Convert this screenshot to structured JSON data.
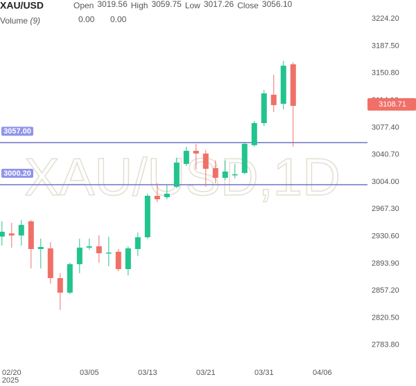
{
  "chart_data": {
    "type": "candlestick",
    "symbol": "XAU/USD",
    "watermark": "XAU/USD,1D",
    "ohlc_legend": [
      {
        "label": "Open",
        "value": "3019.56"
      },
      {
        "label": "High",
        "value": "3059.75"
      },
      {
        "label": "Low",
        "value": "3017.26"
      },
      {
        "label": "Close",
        "value": "3056.10"
      }
    ],
    "volume_label": "Volume",
    "volume_param": "(9)",
    "volume_values": [
      {
        "value": "0.00",
        "color": "#f07068"
      },
      {
        "value": "0.00",
        "color": "#6b8fd6"
      }
    ],
    "up_color": "#22c38e",
    "down_color": "#f07068",
    "x": [
      0,
      1,
      2,
      3,
      4,
      5,
      6,
      7,
      8,
      9,
      10,
      11,
      12,
      13,
      14,
      15,
      16,
      17,
      18,
      19,
      20,
      21,
      22,
      23,
      24,
      25,
      26,
      27,
      28,
      29,
      30
    ],
    "open": [
      2930.2,
      2934.5,
      2931.7,
      2950.8,
      2913.4,
      2914.3,
      2874.2,
      2854.5,
      2893.0,
      2915.3,
      2917.1,
      2907.8,
      2909.7,
      2886.3,
      2913.4,
      2929.3,
      2985.3,
      2983.4,
      2997.5,
      3028.3,
      3046.0,
      3042.3,
      3022.7,
      3009.6,
      3013.0,
      3016.1,
      3053.6,
      3083.4,
      3121.7,
      3109.5,
      3162.8
    ],
    "high": [
      2950.8,
      2948.9,
      2952.6,
      2952.6,
      2927.4,
      2922.7,
      2880.7,
      2894.9,
      2927.4,
      2927.4,
      2932.1,
      2930.0,
      2913.4,
      2917.1,
      2935.8,
      2988.1,
      3002.1,
      2999.3,
      3036.7,
      3051.6,
      3055.4,
      3047.0,
      3033.0,
      3033.0,
      3028.3,
      3058.2,
      3086.2,
      3128.2,
      3148.7,
      3167.4,
      3165.6
    ],
    "low": [
      2918.0,
      2915.3,
      2918.0,
      2887.3,
      2887.3,
      2866.7,
      2831.2,
      2852.6,
      2880.7,
      2912.4,
      2894.9,
      2890.0,
      2883.5,
      2877.9,
      2904.1,
      2927.4,
      2976.9,
      2980.6,
      2995.6,
      3025.5,
      3020.8,
      2997.5,
      3002.1,
      3006.8,
      3008.7,
      3014.3,
      3051.6,
      3079.6,
      3098.3,
      3102.1,
      3051.6
    ],
    "close": [
      2936.8,
      2931.7,
      2946.0,
      2913.4,
      2916.2,
      2874.2,
      2854.5,
      2893.0,
      2915.3,
      2917.1,
      2907.8,
      2908.7,
      2886.3,
      2914.3,
      2929.3,
      2985.3,
      2980.6,
      2988.1,
      3030.1,
      3046.0,
      3042.3,
      3021.7,
      3009.6,
      3018.0,
      3014.3,
      3055.4,
      3083.4,
      3123.5,
      3107.7,
      3160.9,
      3106.7
    ],
    "xlim": [
      -0.2,
      37.3
    ],
    "xticks": [
      {
        "value": 1,
        "label": "02/20"
      },
      {
        "value": 9,
        "label": "03/05"
      },
      {
        "value": 15,
        "label": "03/13"
      },
      {
        "value": 21,
        "label": "03/21"
      },
      {
        "value": 27,
        "label": "03/31"
      },
      {
        "value": 33,
        "label": "04/06"
      }
    ],
    "x_year": "2025",
    "ylim": [
      2754.65,
      3249.6
    ],
    "yticks": [
      {
        "value": 3224.2,
        "label": "3224.20"
      },
      {
        "value": 3187.5,
        "label": "3187.50"
      },
      {
        "value": 3150.8,
        "label": "3150.80"
      },
      {
        "value": 3114.1,
        "label": "3114.10"
      },
      {
        "value": 3077.4,
        "label": "3077.40"
      },
      {
        "value": 3040.7,
        "label": "3040.70"
      },
      {
        "value": 3004,
        "label": "3004.00"
      },
      {
        "value": 2967.3,
        "label": "2967.30"
      },
      {
        "value": 2930.6,
        "label": "2930.60"
      },
      {
        "value": 2893.9,
        "label": "2893.90"
      },
      {
        "value": 2857.2,
        "label": "2857.20"
      },
      {
        "value": 2820.5,
        "label": "2820.50"
      },
      {
        "value": 2783.8,
        "label": "2783.80"
      }
    ],
    "hlines": [
      {
        "value": 3057,
        "label": "3057.00"
      },
      {
        "value": 3000.2,
        "label": "3000.20"
      }
    ],
    "hline_color": "#6e70c8",
    "last_price": 3108.71,
    "grid": false
  }
}
